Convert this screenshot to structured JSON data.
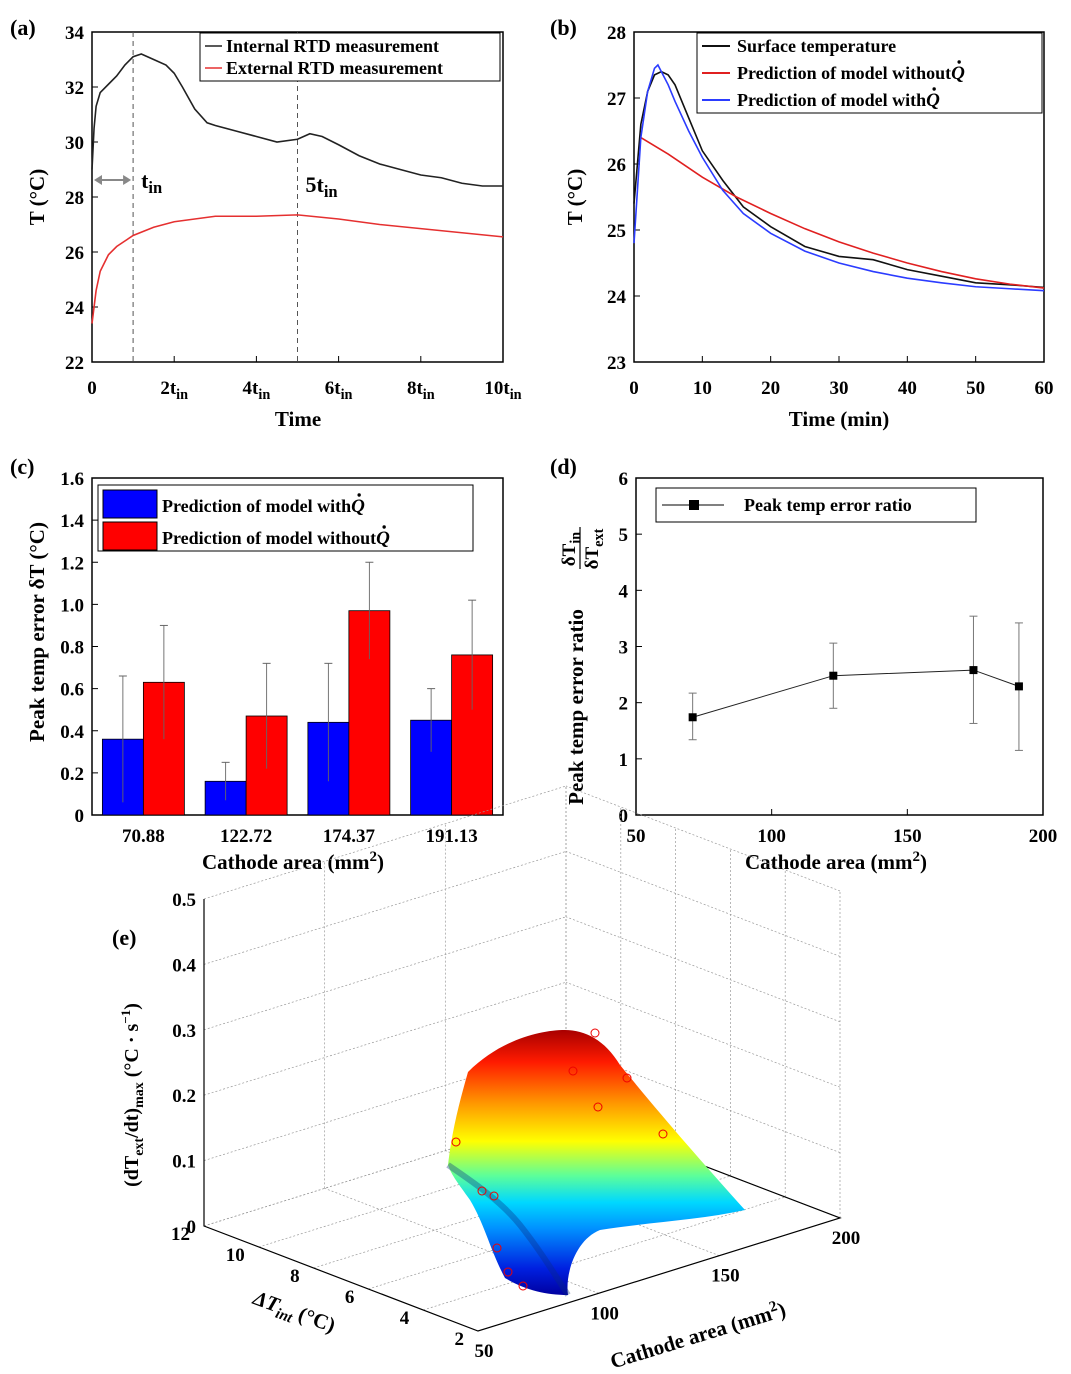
{
  "panels": [
    "(a)",
    "(b)",
    "(c)",
    "(d)",
    "(e)"
  ],
  "chart_data": [
    {
      "id": "a",
      "type": "line",
      "xlabel": "Time",
      "ylabel": "T (°C)",
      "ylim": [
        22,
        34
      ],
      "yticks": [
        22,
        24,
        26,
        28,
        30,
        32,
        34
      ],
      "xlim": [
        0,
        10
      ],
      "xticks": [
        {
          "v": 0,
          "t": "0"
        },
        {
          "v": 2,
          "t": "2t",
          "s": "in"
        },
        {
          "v": 4,
          "t": "4t",
          "s": "in"
        },
        {
          "v": 6,
          "t": "6t",
          "s": "in"
        },
        {
          "v": 8,
          "t": "8t",
          "s": "in"
        },
        {
          "v": 10,
          "t": "10t",
          "s": "in"
        }
      ],
      "annotations": [
        {
          "x": 1,
          "t": "t",
          "s": "in"
        },
        {
          "x": 5,
          "t": "5t",
          "s": "in"
        }
      ],
      "vlines": [
        1,
        5
      ],
      "legend_position": "top-right",
      "series": [
        {
          "name": "Internal RTD measurement",
          "color": "#222222",
          "x": [
            0,
            0.05,
            0.1,
            0.2,
            0.4,
            0.6,
            0.8,
            1.0,
            1.2,
            1.5,
            1.8,
            2.0,
            2.2,
            2.5,
            2.8,
            3.0,
            3.5,
            4.0,
            4.5,
            5.0,
            5.3,
            5.6,
            6.0,
            6.5,
            7.0,
            7.5,
            8.0,
            8.5,
            9.0,
            9.5,
            10.0
          ],
          "y": [
            29.0,
            30.5,
            31.3,
            31.8,
            32.1,
            32.4,
            32.8,
            33.1,
            33.2,
            33.0,
            32.8,
            32.5,
            32.0,
            31.2,
            30.7,
            30.6,
            30.4,
            30.2,
            30.0,
            30.1,
            30.3,
            30.2,
            29.9,
            29.5,
            29.2,
            29.0,
            28.8,
            28.7,
            28.5,
            28.4,
            28.4
          ]
        },
        {
          "name": "External RTD measurement",
          "color": "#e53030",
          "x": [
            0,
            0.05,
            0.1,
            0.2,
            0.4,
            0.6,
            0.8,
            1.0,
            1.5,
            2.0,
            2.5,
            3.0,
            4.0,
            5.0,
            6.0,
            7.0,
            8.0,
            9.0,
            10.0
          ],
          "y": [
            23.4,
            24.0,
            24.6,
            25.3,
            25.9,
            26.2,
            26.4,
            26.6,
            26.9,
            27.1,
            27.2,
            27.3,
            27.3,
            27.35,
            27.2,
            27.0,
            26.85,
            26.7,
            26.55
          ]
        }
      ]
    },
    {
      "id": "b",
      "type": "line",
      "xlabel": "Time (min)",
      "ylabel": "T (°C)",
      "xlim": [
        0,
        60
      ],
      "ylim": [
        23,
        28
      ],
      "xticks": [
        0,
        10,
        20,
        30,
        40,
        50,
        60
      ],
      "yticks": [
        23,
        24,
        25,
        26,
        27,
        28
      ],
      "legend_position": "top-right",
      "series": [
        {
          "name": "Surface temperature",
          "color": "#111111",
          "x": [
            0,
            0.5,
            1,
            2,
            3,
            4,
            5,
            6,
            8,
            10,
            13,
            16,
            20,
            25,
            30,
            35,
            40,
            45,
            50,
            55,
            60
          ],
          "y": [
            25.4,
            26.0,
            26.6,
            27.1,
            27.35,
            27.4,
            27.35,
            27.2,
            26.7,
            26.2,
            25.75,
            25.35,
            25.05,
            24.75,
            24.6,
            24.55,
            24.4,
            24.3,
            24.2,
            24.17,
            24.13
          ]
        },
        {
          "name": "Prediction of model without ",
          "color": "#e02020",
          "x": [
            1,
            5,
            10,
            15,
            20,
            25,
            30,
            35,
            40,
            45,
            50,
            55,
            60
          ],
          "y": [
            26.4,
            26.15,
            25.8,
            25.5,
            25.25,
            25.02,
            24.82,
            24.65,
            24.5,
            24.37,
            24.26,
            24.18,
            24.12
          ]
        },
        {
          "name": "Prediction of model with ",
          "color": "#2b3cff",
          "x": [
            0,
            0.5,
            1,
            2,
            3,
            3.5,
            4,
            5,
            6,
            8,
            10,
            13,
            16,
            20,
            25,
            30,
            35,
            40,
            45,
            50,
            55,
            60
          ],
          "y": [
            24.8,
            25.6,
            26.4,
            27.1,
            27.45,
            27.5,
            27.4,
            27.2,
            26.95,
            26.5,
            26.1,
            25.6,
            25.25,
            24.95,
            24.68,
            24.5,
            24.37,
            24.27,
            24.2,
            24.14,
            24.11,
            24.08
          ]
        }
      ]
    },
    {
      "id": "c",
      "type": "bar",
      "xlabel": "Cathode area (mm",
      "xlabel_sup": "2",
      "xlabel_end": ")",
      "ylabel": "Peak temp error δT (°C)",
      "ylim": [
        0,
        1.6
      ],
      "yticks": [
        "0",
        "0.2",
        "0.4",
        "0.6",
        "0.8",
        "1.0",
        "1.2",
        "1.4",
        "1.6"
      ],
      "categories": [
        "70.88",
        "122.72",
        "174.37",
        "191.13"
      ],
      "legend_position": "top-left",
      "series": [
        {
          "name": "Prediction of model with ",
          "color": "#0000ff",
          "values": [
            0.36,
            0.16,
            0.44,
            0.45
          ],
          "errors": [
            0.3,
            0.09,
            0.28,
            0.15
          ]
        },
        {
          "name": "Prediction of model without ",
          "color": "#ff0000",
          "values": [
            0.63,
            0.47,
            0.97,
            0.76
          ],
          "errors": [
            0.27,
            0.25,
            0.23,
            0.26
          ]
        }
      ]
    },
    {
      "id": "d",
      "type": "scatter",
      "xlabel": "Cathode area (mm",
      "xlabel_sup": "2",
      "xlabel_end": ")",
      "ylabel": "Peak temp error ratio ",
      "ylabel_frac_num": "δT",
      "ylabel_frac_num_sub": "in",
      "ylabel_frac_den": "δT",
      "ylabel_frac_den_sub": "ext",
      "xlim": [
        50,
        200
      ],
      "ylim": [
        0,
        6
      ],
      "xticks": [
        50,
        100,
        150,
        200
      ],
      "yticks": [
        0,
        1,
        2,
        3,
        4,
        5,
        6
      ],
      "legend_position": "top-left",
      "series": [
        {
          "name": "Peak temp error ratio",
          "color": "#111111",
          "x": [
            70.88,
            122.72,
            174.37,
            191.13
          ],
          "y": [
            1.74,
            2.48,
            2.58,
            2.29
          ],
          "err_low": [
            0.4,
            0.58,
            0.95,
            1.14
          ],
          "err_high": [
            0.43,
            0.58,
            0.96,
            1.13
          ]
        }
      ]
    },
    {
      "id": "e",
      "type": "surface",
      "zlabel": "(dT",
      "zlabel_sub1": "ext",
      "zlabel_mid": "/dt)",
      "zlabel_sub2": "max",
      "zlabel_end": " (°C · s",
      "zlabel_sup": "−1",
      "zlabel_close": ")",
      "ylabel": "ΔT",
      "ylabel_sub": "int",
      "ylabel_end": " (°C)",
      "xlabel": "Cathode area (mm",
      "xlabel_sup": "2",
      "xlabel_end": ")",
      "zticks": [
        "0",
        "0.1",
        "0.2",
        "0.3",
        "0.4",
        "0.5"
      ],
      "yticks": [
        "12",
        "10",
        "8",
        "6",
        "4",
        "2"
      ],
      "xticks": [
        "50",
        "100",
        "150",
        "200"
      ],
      "colormap": "jet",
      "grid": true
    }
  ]
}
